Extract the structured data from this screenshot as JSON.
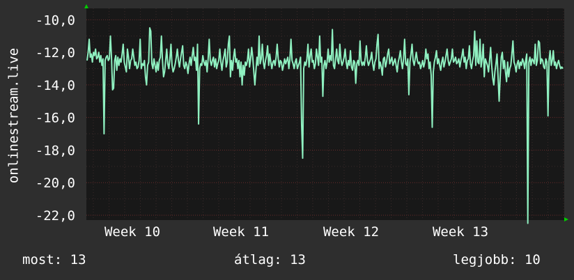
{
  "colors": {
    "background": "#2e2e2e",
    "plot_background": "#181818",
    "line": "#8ff0c0",
    "grid": "#6a2a2a",
    "axis_arrow": "#00cc00",
    "text": "#ffffff"
  },
  "chart_data": {
    "type": "line",
    "ylabel": "onlinestream.live",
    "ylim": [
      -22.3,
      -9.3
    ],
    "yticks": [
      "-10,0",
      "-12,0",
      "-14,0",
      "-16,0",
      "-18,0",
      "-20,0",
      "-22,0"
    ],
    "ytick_values": [
      -10,
      -12,
      -14,
      -16,
      -18,
      -20,
      -22
    ],
    "xticks": [
      "Week 10",
      "Week 11",
      "Week 12",
      "Week 13"
    ],
    "grid": true,
    "series": [
      {
        "values": [
          -12.5,
          -12.0,
          -11.2,
          -12.3,
          -12.1,
          -12.6,
          -12.0,
          -12.2,
          -11.8,
          -12.4,
          -12.3,
          -12.0,
          -12.6,
          -12.2,
          -12.8,
          -12.4,
          -17.0,
          -12.5,
          -12.3,
          -12.2,
          -12.5,
          -12.4,
          -11.0,
          -12.3,
          -14.3,
          -14.2,
          -12.5,
          -12.2,
          -13.1,
          -12.3,
          -12.8,
          -12.4,
          -12.6,
          -12.1,
          -11.5,
          -12.6,
          -12.9,
          -13.2,
          -11.8,
          -12.3,
          -13.0,
          -12.5,
          -12.4,
          -11.8,
          -12.3,
          -12.8,
          -12.6,
          -13.0,
          -12.9,
          -12.5,
          -11.2,
          -13.0,
          -12.7,
          -12.8,
          -12.5,
          -13.5,
          -14.0,
          -12.8,
          -12.6,
          -10.5,
          -10.7,
          -12.7,
          -13.0,
          -12.4,
          -12.8,
          -13.2,
          -12.6,
          -13.1,
          -12.5,
          -12.3,
          -11.0,
          -12.5,
          -13.5,
          -13.2,
          -12.5,
          -11.8,
          -12.7,
          -13.0,
          -12.4,
          -11.5,
          -12.8,
          -13.2,
          -13.0,
          -12.7,
          -12.3,
          -11.8,
          -12.5,
          -12.9,
          -12.4,
          -12.0,
          -11.6,
          -12.8,
          -13.0,
          -12.6,
          -12.8,
          -13.3,
          -12.7,
          -12.3,
          -12.8,
          -12.2,
          -11.7,
          -12.5,
          -12.3,
          -13.1,
          -11.5,
          -16.4,
          -13.0,
          -12.7,
          -12.8,
          -12.2,
          -12.6,
          -12.8,
          -12.5,
          -13.2,
          -12.4,
          -11.2,
          -12.5,
          -12.8,
          -12.5,
          -12.3,
          -12.9,
          -12.4,
          -13.0,
          -12.7,
          -12.5,
          -11.8,
          -12.6,
          -13.1,
          -12.5,
          -12.2,
          -11.8,
          -12.9,
          -12.6,
          -11.5,
          -11.0,
          -13.5,
          -12.5,
          -13.1,
          -12.3,
          -11.8,
          -12.6,
          -12.4,
          -13.0,
          -12.5,
          -13.5,
          -12.6,
          -14.0,
          -12.8,
          -13.4,
          -12.6,
          -12.8,
          -12.5,
          -11.8,
          -12.9,
          -12.4,
          -11.7,
          -12.3,
          -13.2,
          -14.0,
          -13.1,
          -12.3,
          -12.8,
          -11.0,
          -12.7,
          -12.4,
          -11.5,
          -12.6,
          -13.0,
          -12.5,
          -12.2,
          -11.6,
          -12.8,
          -12.1,
          -12.6,
          -13.0,
          -12.6,
          -12.5,
          -12.8,
          -12.3,
          -11.5,
          -12.4,
          -12.9,
          -12.5,
          -12.6,
          -13.1,
          -12.8,
          -12.4,
          -12.7,
          -12.5,
          -12.3,
          -13.0,
          -12.4,
          -11.2,
          -12.5,
          -12.7,
          -13.0,
          -12.6,
          -12.4,
          -13.0,
          -12.8,
          -12.6,
          -12.3,
          -16.4,
          -18.5,
          -13.0,
          -12.6,
          -12.8,
          -12.4,
          -11.5,
          -12.9,
          -12.2,
          -11.8,
          -12.6,
          -12.5,
          -13.0,
          -12.7,
          -11.8,
          -12.3,
          -12.8,
          -11.0,
          -12.6,
          -12.3,
          -14.7,
          -12.8,
          -12.5,
          -13.0,
          -12.6,
          -11.8,
          -12.6,
          -12.2,
          -12.5,
          -10.6,
          -12.8,
          -13.0,
          -12.4,
          -11.8,
          -12.5,
          -12.7,
          -11.5,
          -12.4,
          -12.8,
          -12.6,
          -12.3,
          -11.8,
          -12.6,
          -13.0,
          -12.5,
          -12.8,
          -11.9,
          -12.9,
          -13.1,
          -12.5,
          -12.6,
          -13.9,
          -12.7,
          -12.5,
          -12.8,
          -11.3,
          -12.5,
          -12.8,
          -12.6,
          -12.8,
          -12.3,
          -11.6,
          -12.5,
          -12.8,
          -12.6,
          -12.4,
          -12.0,
          -12.7,
          -13.1,
          -12.6,
          -12.4,
          -11.5,
          -10.9,
          -13.0,
          -12.6,
          -12.9,
          -13.4,
          -12.4,
          -12.3,
          -12.9,
          -12.6,
          -12.1,
          -11.8,
          -12.7,
          -12.5,
          -12.3,
          -12.8,
          -12.6,
          -12.4,
          -12.8,
          -13.2,
          -12.6,
          -12.3,
          -11.9,
          -12.6,
          -13.0,
          -12.4,
          -11.2,
          -12.7,
          -12.8,
          -12.4,
          -14.6,
          -12.6,
          -12.1,
          -11.5,
          -12.5,
          -12.8,
          -12.4,
          -12.0,
          -12.5,
          -12.7,
          -12.6,
          -13.0,
          -12.8,
          -12.5,
          -12.9,
          -12.6,
          -11.8,
          -12.4,
          -12.1,
          -13.0,
          -12.6,
          -13.4,
          -16.6,
          -13.2,
          -12.6,
          -12.3,
          -11.9,
          -12.7,
          -12.4,
          -12.8,
          -13.1,
          -12.6,
          -12.3,
          -12.9,
          -12.6,
          -12.2,
          -11.8,
          -12.5,
          -12.8,
          -12.6,
          -12.4,
          -11.8,
          -12.6,
          -12.5,
          -12.3,
          -12.7,
          -12.6,
          -12.4,
          -12.9,
          -12.5,
          -12.2,
          -11.8,
          -12.6,
          -12.3,
          -13.0,
          -12.5,
          -12.4,
          -11.6,
          -12.7,
          -13.0,
          -12.5,
          -12.2,
          -10.7,
          -12.8,
          -11.3,
          -12.6,
          -12.7,
          -11.2,
          -12.9,
          -12.4,
          -11.5,
          -13.5,
          -12.4,
          -12.6,
          -12.8,
          -13.2,
          -12.5,
          -11.7,
          -12.8,
          -13.6,
          -14.0,
          -13.2,
          -12.7,
          -12.1,
          -13.5,
          -15.0,
          -13.5,
          -12.3,
          -12.0,
          -13.0,
          -12.5,
          -13.2,
          -13.8,
          -12.6,
          -13.5,
          -13.0,
          -12.8,
          -12.1,
          -11.3,
          -12.6,
          -12.8,
          -13.2,
          -12.7,
          -12.5,
          -13.0,
          -12.6,
          -12.8,
          -12.4,
          -12.6,
          -13.0,
          -12.5,
          -12.1,
          -22.5,
          -12.6,
          -12.3,
          -12.8,
          -12.4,
          -12.5,
          -12.7,
          -11.5,
          -12.8,
          -12.5,
          -11.3,
          -11.4,
          -12.7,
          -12.4,
          -12.5,
          -12.9,
          -13.0,
          -12.4,
          -12.6,
          -15.9,
          -12.5,
          -11.9,
          -12.8,
          -12.5,
          -11.9,
          -12.8,
          -12.6,
          -13.0,
          -12.7,
          -12.5,
          -12.8,
          -13.0,
          -12.9,
          -13.0
        ]
      }
    ]
  },
  "stats": {
    "now": "most: 13",
    "avg": "átlag: 13",
    "best": "legjobb: 10"
  }
}
